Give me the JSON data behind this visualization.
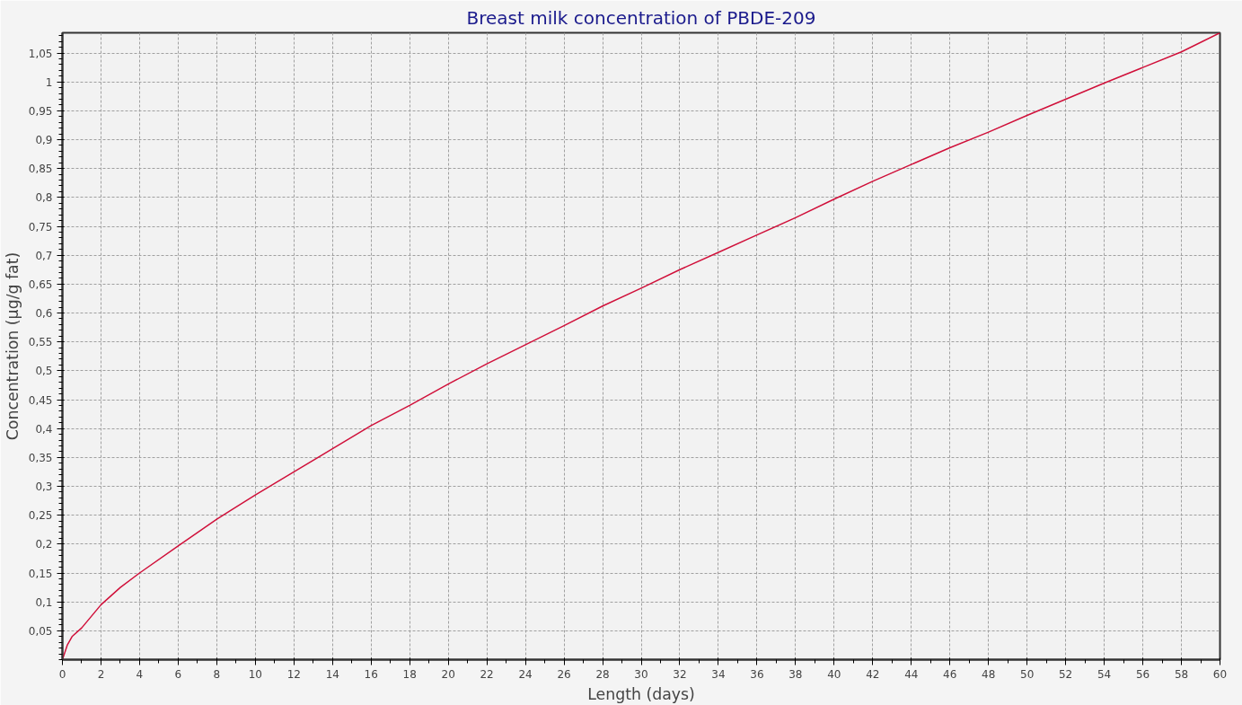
{
  "chart_data": {
    "type": "line",
    "title": "Breast milk concentration of PBDE-209",
    "xlabel": "Length (days)",
    "ylabel": "Concentration (µg/g fat)",
    "x": [
      0,
      0.25,
      0.5,
      1,
      2,
      3,
      4,
      6,
      8,
      10,
      12,
      14,
      16,
      18,
      20,
      22,
      24,
      26,
      28,
      30,
      32,
      34,
      36,
      38,
      40,
      42,
      44,
      46,
      48,
      50,
      52,
      54,
      56,
      58,
      60
    ],
    "series": [
      {
        "color": "#d0103a",
        "values": [
          0,
          0.025,
          0.04,
          0.055,
          0.095,
          0.125,
          0.15,
          0.197,
          0.243,
          0.285,
          0.325,
          0.365,
          0.405,
          0.44,
          0.477,
          0.512,
          0.545,
          0.578,
          0.612,
          0.643,
          0.675,
          0.705,
          0.735,
          0.765,
          0.797,
          0.828,
          0.857,
          0.886,
          0.913,
          0.942,
          0.97,
          0.998,
          1.025,
          1.052,
          1.085
        ]
      }
    ],
    "xlim": [
      0,
      60
    ],
    "ylim": [
      0,
      1.085
    ],
    "xticks": [
      0,
      2,
      4,
      6,
      8,
      10,
      12,
      14,
      16,
      18,
      20,
      22,
      24,
      26,
      28,
      30,
      32,
      34,
      36,
      38,
      40,
      42,
      44,
      46,
      48,
      50,
      52,
      54,
      56,
      58,
      60
    ],
    "yticks": [
      {
        "value": 0.05,
        "label": "0,05"
      },
      {
        "value": 0.1,
        "label": "0,1"
      },
      {
        "value": 0.15,
        "label": "0,15"
      },
      {
        "value": 0.2,
        "label": "0,2"
      },
      {
        "value": 0.25,
        "label": "0,25"
      },
      {
        "value": 0.3,
        "label": "0,3"
      },
      {
        "value": 0.35,
        "label": "0,35"
      },
      {
        "value": 0.4,
        "label": "0,4"
      },
      {
        "value": 0.45,
        "label": "0,45"
      },
      {
        "value": 0.5,
        "label": "0,5"
      },
      {
        "value": 0.55,
        "label": "0,55"
      },
      {
        "value": 0.6,
        "label": "0,6"
      },
      {
        "value": 0.65,
        "label": "0,65"
      },
      {
        "value": 0.7,
        "label": "0,7"
      },
      {
        "value": 0.75,
        "label": "0,75"
      },
      {
        "value": 0.8,
        "label": "0,8"
      },
      {
        "value": 0.85,
        "label": "0,85"
      },
      {
        "value": 0.9,
        "label": "0,9"
      },
      {
        "value": 0.95,
        "label": "0,95"
      },
      {
        "value": 1,
        "label": "1"
      },
      {
        "value": 1.05,
        "label": "1,05"
      }
    ],
    "grid": true,
    "line_style": "solid"
  }
}
